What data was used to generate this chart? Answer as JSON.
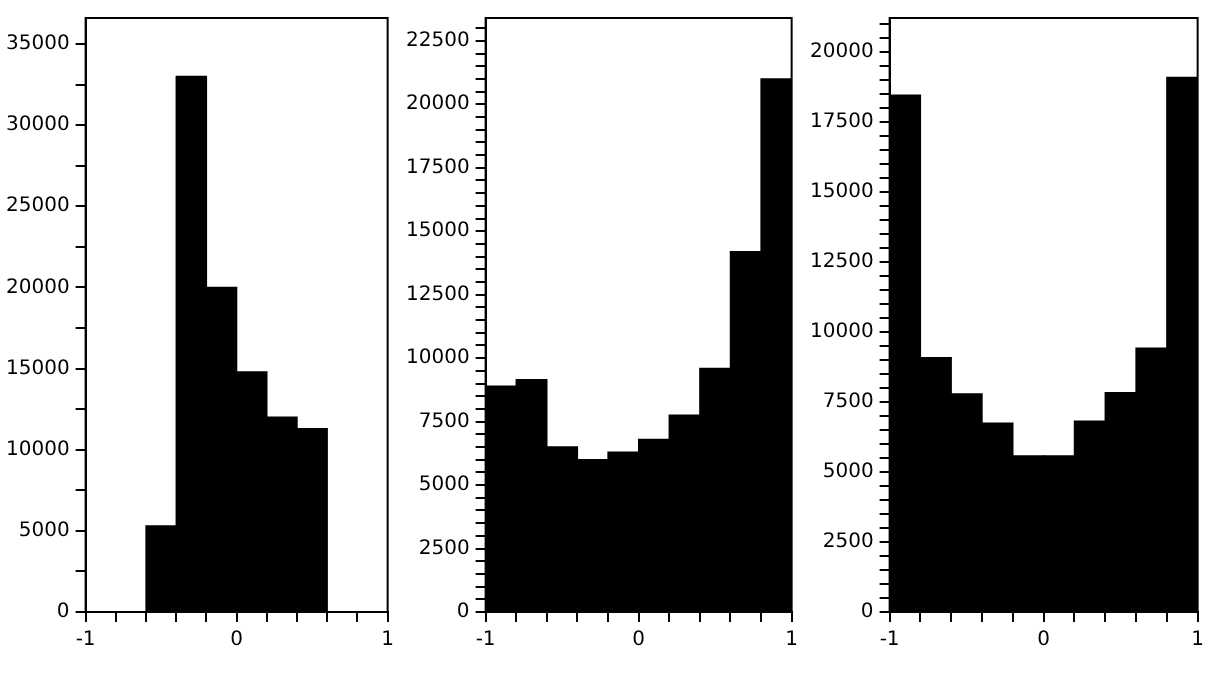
{
  "chart_data": [
    {
      "type": "histogram",
      "bins": [
        -1,
        -0.8,
        -0.6,
        -0.4,
        -0.2,
        0,
        0.2,
        0.4,
        0.6,
        0.8,
        1
      ],
      "values": [
        0,
        0,
        5300,
        33000,
        20000,
        14800,
        12000,
        11300,
        0,
        0
      ],
      "color": "#000000",
      "xlim": [
        -1,
        1
      ],
      "ylim": [
        0,
        36600
      ],
      "xticks": [
        -1,
        {
          "value": -0.8,
          "label": null
        },
        {
          "value": -0.6,
          "label": null
        },
        {
          "value": -0.4,
          "label": null
        },
        {
          "value": -0.2,
          "label": null
        },
        0,
        {
          "value": 0.2,
          "label": null
        },
        {
          "value": 0.4,
          "label": null
        },
        {
          "value": 0.6,
          "label": null
        },
        {
          "value": 0.8,
          "label": null
        },
        1
      ],
      "yticks": [
        0,
        {
          "value": 2500,
          "label": null
        },
        5000,
        {
          "value": 7500,
          "label": null
        },
        10000,
        {
          "value": 12500,
          "label": null
        },
        15000,
        {
          "value": 17500,
          "label": null
        },
        20000,
        {
          "value": 22500,
          "label": null
        },
        25000,
        {
          "value": 27500,
          "label": null
        },
        30000,
        {
          "value": 32500,
          "label": null
        },
        35000
      ],
      "grid": false,
      "legend": false
    },
    {
      "type": "histogram",
      "bins": [
        -1,
        -0.8,
        -0.6,
        -0.4,
        -0.2,
        0,
        0.2,
        0.4,
        0.6,
        0.8,
        1
      ],
      "values": [
        8900,
        9150,
        6500,
        6000,
        6300,
        6800,
        7750,
        9600,
        14200,
        21000
      ],
      "color": "#000000",
      "xlim": [
        -1,
        1
      ],
      "ylim": [
        0,
        23400
      ],
      "xticks": [
        -1,
        {
          "value": -0.8,
          "label": null
        },
        {
          "value": -0.6,
          "label": null
        },
        {
          "value": -0.4,
          "label": null
        },
        {
          "value": -0.2,
          "label": null
        },
        0,
        {
          "value": 0.2,
          "label": null
        },
        {
          "value": 0.4,
          "label": null
        },
        {
          "value": 0.6,
          "label": null
        },
        {
          "value": 0.8,
          "label": null
        },
        1
      ],
      "yticks": [
        0,
        {
          "value": 500,
          "label": null
        },
        {
          "value": 1000,
          "label": null
        },
        {
          "value": 1500,
          "label": null
        },
        {
          "value": 2000,
          "label": null
        },
        2500,
        {
          "value": 3000,
          "label": null
        },
        {
          "value": 3500,
          "label": null
        },
        {
          "value": 4000,
          "label": null
        },
        {
          "value": 4500,
          "label": null
        },
        5000,
        {
          "value": 5500,
          "label": null
        },
        {
          "value": 6000,
          "label": null
        },
        {
          "value": 6500,
          "label": null
        },
        {
          "value": 7000,
          "label": null
        },
        7500,
        {
          "value": 8000,
          "label": null
        },
        {
          "value": 8500,
          "label": null
        },
        {
          "value": 9000,
          "label": null
        },
        {
          "value": 9500,
          "label": null
        },
        10000,
        {
          "value": 10500,
          "label": null
        },
        {
          "value": 11000,
          "label": null
        },
        {
          "value": 11500,
          "label": null
        },
        {
          "value": 12000,
          "label": null
        },
        12500,
        {
          "value": 13000,
          "label": null
        },
        {
          "value": 13500,
          "label": null
        },
        {
          "value": 14000,
          "label": null
        },
        {
          "value": 14500,
          "label": null
        },
        15000,
        {
          "value": 15500,
          "label": null
        },
        {
          "value": 16000,
          "label": null
        },
        {
          "value": 16500,
          "label": null
        },
        {
          "value": 17000,
          "label": null
        },
        17500,
        {
          "value": 18000,
          "label": null
        },
        {
          "value": 18500,
          "label": null
        },
        {
          "value": 19000,
          "label": null
        },
        {
          "value": 19500,
          "label": null
        },
        20000,
        {
          "value": 20500,
          "label": null
        },
        {
          "value": 21000,
          "label": null
        },
        {
          "value": 21500,
          "label": null
        },
        {
          "value": 22000,
          "label": null
        },
        22500,
        {
          "value": 23000,
          "label": null
        }
      ],
      "grid": false,
      "legend": false
    },
    {
      "type": "histogram",
      "bins": [
        -1,
        -0.8,
        -0.6,
        -0.4,
        -0.2,
        0,
        0.2,
        0.4,
        0.6,
        0.8,
        1
      ],
      "values": [
        18450,
        9080,
        7780,
        6740,
        5570,
        5570,
        6810,
        7830,
        9420,
        19080
      ],
      "color": "#000000",
      "xlim": [
        -1,
        1
      ],
      "ylim": [
        0,
        21200
      ],
      "xticks": [
        -1,
        {
          "value": -0.8,
          "label": null
        },
        {
          "value": -0.6,
          "label": null
        },
        {
          "value": -0.4,
          "label": null
        },
        {
          "value": -0.2,
          "label": null
        },
        0,
        {
          "value": 0.2,
          "label": null
        },
        {
          "value": 0.4,
          "label": null
        },
        {
          "value": 0.6,
          "label": null
        },
        {
          "value": 0.8,
          "label": null
        },
        1
      ],
      "yticks": [
        0,
        {
          "value": 500,
          "label": null
        },
        {
          "value": 1000,
          "label": null
        },
        {
          "value": 1500,
          "label": null
        },
        {
          "value": 2000,
          "label": null
        },
        2500,
        {
          "value": 3000,
          "label": null
        },
        {
          "value": 3500,
          "label": null
        },
        {
          "value": 4000,
          "label": null
        },
        {
          "value": 4500,
          "label": null
        },
        5000,
        {
          "value": 5500,
          "label": null
        },
        {
          "value": 6000,
          "label": null
        },
        {
          "value": 6500,
          "label": null
        },
        {
          "value": 7000,
          "label": null
        },
        7500,
        {
          "value": 8000,
          "label": null
        },
        {
          "value": 8500,
          "label": null
        },
        {
          "value": 9000,
          "label": null
        },
        {
          "value": 9500,
          "label": null
        },
        10000,
        {
          "value": 10500,
          "label": null
        },
        {
          "value": 11000,
          "label": null
        },
        {
          "value": 11500,
          "label": null
        },
        {
          "value": 12000,
          "label": null
        },
        12500,
        {
          "value": 13000,
          "label": null
        },
        {
          "value": 13500,
          "label": null
        },
        {
          "value": 14000,
          "label": null
        },
        {
          "value": 14500,
          "label": null
        },
        15000,
        {
          "value": 15500,
          "label": null
        },
        {
          "value": 16000,
          "label": null
        },
        {
          "value": 16500,
          "label": null
        },
        {
          "value": 17000,
          "label": null
        },
        17500,
        {
          "value": 18000,
          "label": null
        },
        {
          "value": 18500,
          "label": null
        },
        {
          "value": 19000,
          "label": null
        },
        {
          "value": 19500,
          "label": null
        },
        20000,
        {
          "value": 20500,
          "label": null
        },
        {
          "value": 21000,
          "label": null
        }
      ],
      "grid": false,
      "legend": false
    }
  ]
}
